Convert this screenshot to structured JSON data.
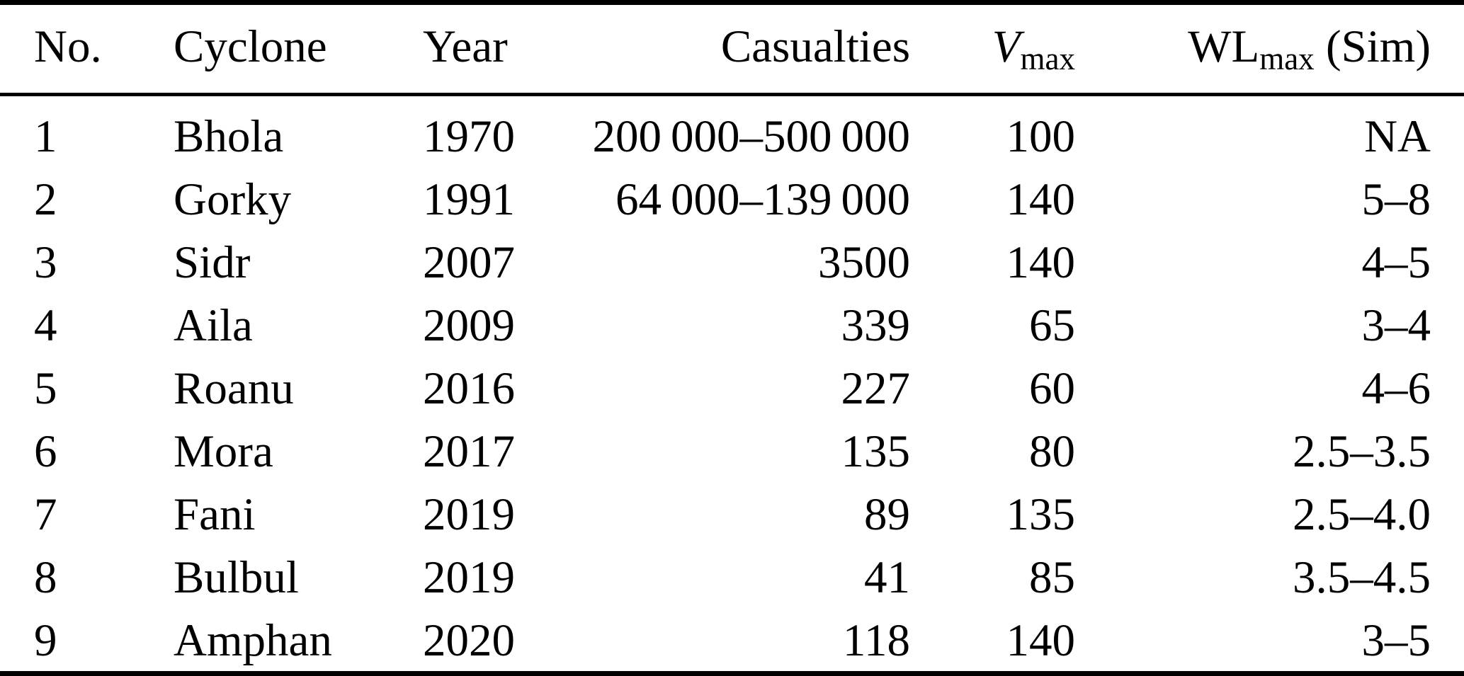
{
  "table": {
    "header": {
      "no": "No.",
      "cyclone": "Cyclone",
      "year": "Year",
      "casualties": "Casualties",
      "vmax": {
        "main": "V",
        "sub": "max"
      },
      "wlmax": {
        "main": "WL",
        "sub": "max",
        "suffix": " (Sim)"
      }
    },
    "rows": [
      {
        "no": "1",
        "cyclone": "Bhola",
        "year": "1970",
        "casualties": "200 000–500 000",
        "vmax": "100",
        "wlmax": "NA"
      },
      {
        "no": "2",
        "cyclone": "Gorky",
        "year": "1991",
        "casualties": "64 000–139 000",
        "vmax": "140",
        "wlmax": "5–8"
      },
      {
        "no": "3",
        "cyclone": "Sidr",
        "year": "2007",
        "casualties": "3500",
        "vmax": "140",
        "wlmax": "4–5"
      },
      {
        "no": "4",
        "cyclone": "Aila",
        "year": "2009",
        "casualties": "339",
        "vmax": "65",
        "wlmax": "3–4"
      },
      {
        "no": "5",
        "cyclone": "Roanu",
        "year": "2016",
        "casualties": "227",
        "vmax": "60",
        "wlmax": "4–6"
      },
      {
        "no": "6",
        "cyclone": "Mora",
        "year": "2017",
        "casualties": "135",
        "vmax": "80",
        "wlmax": "2.5–3.5"
      },
      {
        "no": "7",
        "cyclone": "Fani",
        "year": "2019",
        "casualties": "89",
        "vmax": "135",
        "wlmax": "2.5–4.0"
      },
      {
        "no": "8",
        "cyclone": "Bulbul",
        "year": "2019",
        "casualties": "41",
        "vmax": "85",
        "wlmax": "3.5–4.5"
      },
      {
        "no": "9",
        "cyclone": "Amphan",
        "year": "2020",
        "casualties": "118",
        "vmax": "140",
        "wlmax": "3–5"
      }
    ],
    "colors": {
      "text": "#000000",
      "background": "#ffffff",
      "rule": "#000000"
    }
  }
}
